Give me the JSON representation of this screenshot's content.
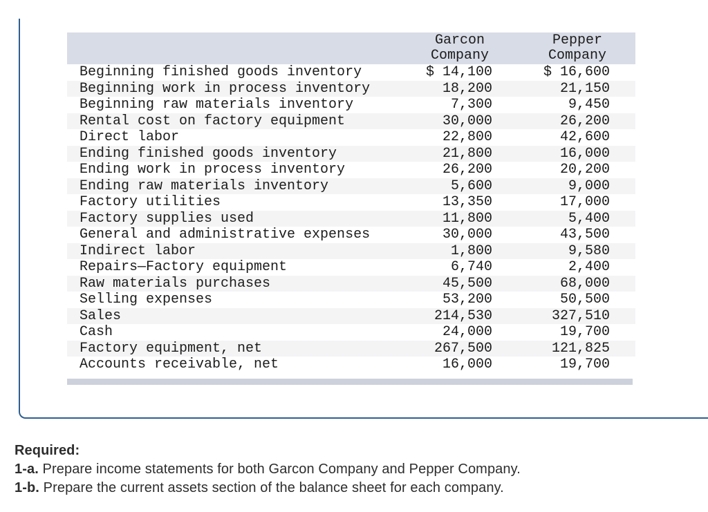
{
  "table": {
    "header": {
      "garcon": [
        "Garcon",
        "Company"
      ],
      "pepper": [
        "Pepper",
        "Company"
      ]
    },
    "rows": [
      {
        "label": "Beginning finished goods inventory",
        "garcon": "$ 14,100",
        "pepper": "$ 16,600"
      },
      {
        "label": "Beginning work in process inventory",
        "garcon": "18,200",
        "pepper": "21,150"
      },
      {
        "label": "Beginning raw materials inventory",
        "garcon": "7,300",
        "pepper": "9,450"
      },
      {
        "label": "Rental cost on factory equipment",
        "garcon": "30,000",
        "pepper": "26,200"
      },
      {
        "label": "Direct labor",
        "garcon": "22,800",
        "pepper": "42,600"
      },
      {
        "label": "Ending finished goods inventory",
        "garcon": "21,800",
        "pepper": "16,000"
      },
      {
        "label": "Ending work in process inventory",
        "garcon": "26,200",
        "pepper": "20,200"
      },
      {
        "label": "Ending raw materials inventory",
        "garcon": "5,600",
        "pepper": "9,000"
      },
      {
        "label": "Factory utilities",
        "garcon": "13,350",
        "pepper": "17,000"
      },
      {
        "label": "Factory supplies used",
        "garcon": "11,800",
        "pepper": "5,400"
      },
      {
        "label": "General and administrative expenses",
        "garcon": "30,000",
        "pepper": "43,500"
      },
      {
        "label": "Indirect labor",
        "garcon": "1,800",
        "pepper": "9,580"
      },
      {
        "label": "Repairs—Factory equipment",
        "garcon": "6,740",
        "pepper": "2,400"
      },
      {
        "label": "Raw materials purchases",
        "garcon": "45,500",
        "pepper": "68,000"
      },
      {
        "label": "Selling expenses",
        "garcon": "53,200",
        "pepper": "50,500"
      },
      {
        "label": "Sales",
        "garcon": "214,530",
        "pepper": "327,510"
      },
      {
        "label": "Cash",
        "garcon": "24,000",
        "pepper": "19,700"
      },
      {
        "label": "Factory equipment, net",
        "garcon": "267,500",
        "pepper": "121,825"
      },
      {
        "label": "Accounts receivable, net",
        "garcon": "16,000",
        "pepper": "19,700"
      }
    ]
  },
  "required": {
    "heading": "Required:",
    "items": [
      {
        "prefix": "1-a.",
        "text": "Prepare income statements for both Garcon Company and Pepper Company."
      },
      {
        "prefix": "1-b.",
        "text": "Prepare the current assets section of the balance sheet for each company."
      }
    ]
  },
  "colors": {
    "panel_border": "#2e5e90",
    "table_header_bg": "#d8dce6",
    "row_alt_bg": "#f4f4f5",
    "table_end_bar": "#ccd1dc",
    "text": "#1c1c1c"
  }
}
